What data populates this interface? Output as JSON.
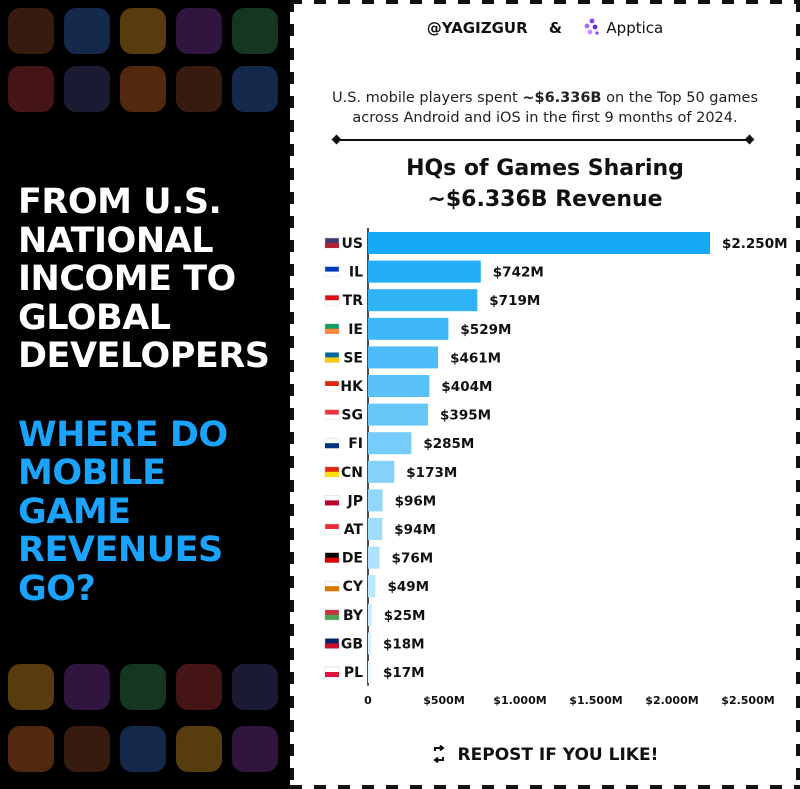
{
  "left": {
    "headline": [
      "FROM U.S.",
      "NATIONAL",
      "INCOME TO",
      "GLOBAL",
      "DEVELOPERS"
    ],
    "question": [
      "WHERE DO",
      "MOBILE",
      "GAME",
      "REVENUES",
      "GO?"
    ]
  },
  "brand": {
    "handle": "@YAGIZGUR",
    "amp": "&",
    "logo_text": "Apptica",
    "logo_icon": "apptica-logo-icon"
  },
  "intro": {
    "pre": "U.S. mobile players spent ",
    "bold": "~$6.336B",
    "post": " on the Top 50 games across Android and iOS in the first 9 months of 2024."
  },
  "footer": {
    "label": "REPOST IF YOU LIKE!",
    "icon": "repost-icon"
  },
  "colors": {
    "bar_top": "#14a8f5",
    "bar_bottom": "#e6f6ff",
    "accent": "#1aa3ff"
  },
  "chart_data": {
    "type": "bar",
    "orientation": "horizontal",
    "title": "HQs of Games Sharing ~$6.336B Revenue",
    "xlabel": "",
    "ylabel": "",
    "xlim": [
      0,
      2500
    ],
    "unit": "M USD",
    "ticks": [
      0,
      500,
      1000,
      1500,
      2000,
      2500
    ],
    "tick_labels": [
      "0",
      "$500M",
      "$1.000M",
      "$1.500M",
      "$2.000M",
      "$2.500M"
    ],
    "categories": [
      "US",
      "IL",
      "TR",
      "IE",
      "SE",
      "HK",
      "SG",
      "FI",
      "CN",
      "JP",
      "AT",
      "DE",
      "CY",
      "BY",
      "GB",
      "PL"
    ],
    "values": [
      2250,
      742,
      719,
      529,
      461,
      404,
      395,
      285,
      173,
      96,
      94,
      76,
      49,
      25,
      18,
      17
    ],
    "value_labels": [
      "$2.250M",
      "$742M",
      "$719M",
      "$529M",
      "$461M",
      "$404M",
      "$395M",
      "$285M",
      "$173M",
      "$96M",
      "$94M",
      "$76M",
      "$49M",
      "$25M",
      "$18M",
      "$17M"
    ],
    "flag_icons": [
      "us-flag-icon",
      "il-flag-icon",
      "tr-flag-icon",
      "ie-flag-icon",
      "se-flag-icon",
      "hk-flag-icon",
      "sg-flag-icon",
      "fi-flag-icon",
      "cn-flag-icon",
      "jp-flag-icon",
      "at-flag-icon",
      "de-flag-icon",
      "cy-flag-icon",
      "by-flag-icon",
      "gb-flag-icon",
      "pl-flag-icon"
    ],
    "grid": false,
    "legend": "none"
  }
}
